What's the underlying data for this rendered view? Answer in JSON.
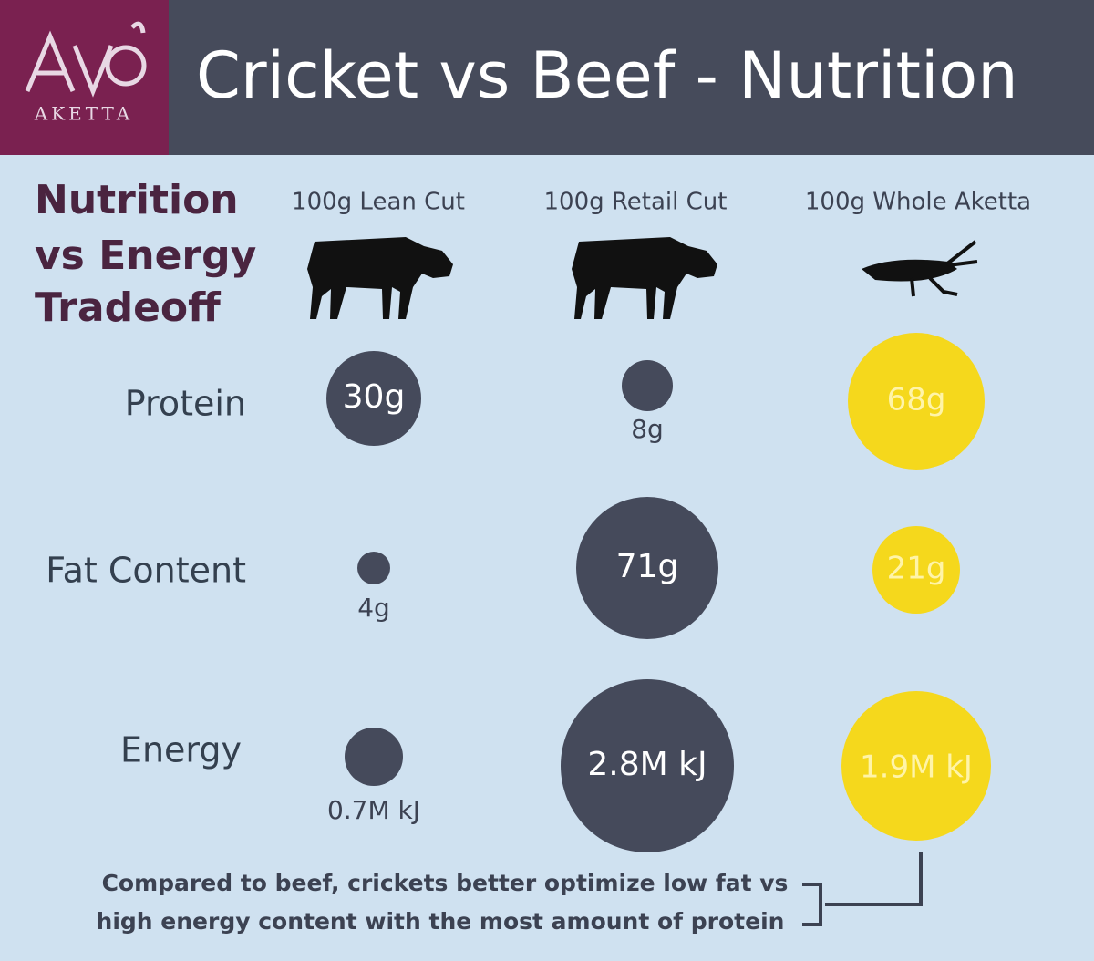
{
  "header": {
    "logo": "AKETTA",
    "title": "Cricket vs Beef - Nutrition"
  },
  "heading": [
    "Nutrition",
    "vs Energy",
    "Tradeoff"
  ],
  "columns": [
    "100g Lean Cut",
    "100g Retail Cut",
    "100g Whole Aketta"
  ],
  "rows": [
    {
      "label": "Protein",
      "values": [
        "30g",
        "8g",
        "68g"
      ]
    },
    {
      "label": "Fat Content",
      "values": [
        "4g",
        "71g",
        "21g"
      ]
    },
    {
      "label": "Energy",
      "values": [
        "0.7M kJ",
        "2.8M kJ",
        "1.9M kJ"
      ]
    }
  ],
  "note": [
    "Compared to beef, crickets better optimize low fat vs",
    "high energy content with the most amount of protein"
  ]
}
